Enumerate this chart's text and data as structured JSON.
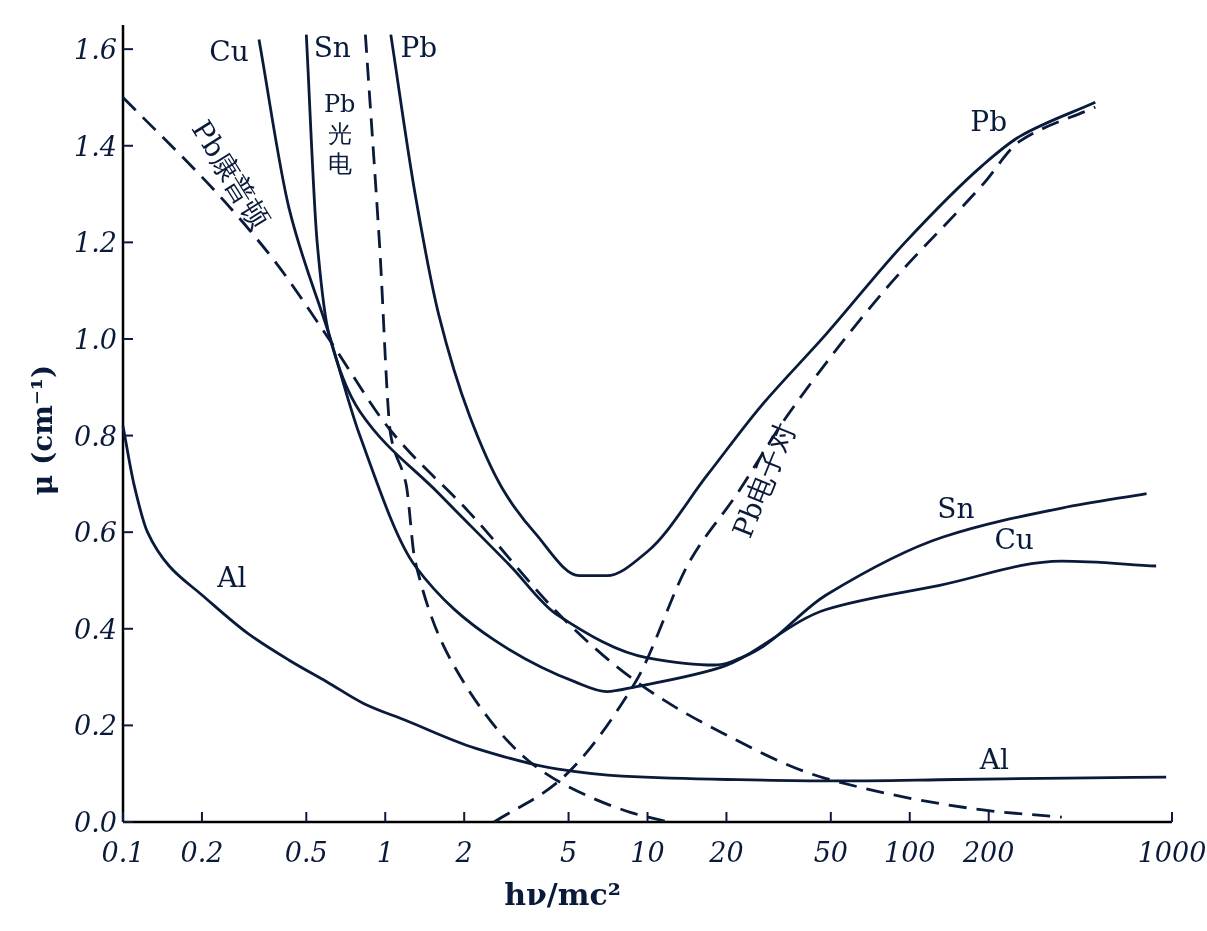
{
  "chart_data": {
    "type": "line",
    "xlabel": "hν/mc²",
    "ylabel": "μ (cm⁻¹)",
    "log": "x",
    "xlim": [
      0.1,
      1000
    ],
    "ylim": [
      0,
      1.65
    ],
    "xticks": [
      0.1,
      0.2,
      0.5,
      1,
      2,
      5,
      10,
      20,
      50,
      100,
      200,
      1000
    ],
    "yticks": [
      {
        "value": 0,
        "label": "0.0"
      },
      {
        "value": 0.2,
        "label": "0.2"
      },
      {
        "value": 0.4,
        "label": "0.4"
      },
      {
        "value": 0.6,
        "label": "0.6"
      },
      {
        "value": 0.8,
        "label": "0.8"
      },
      {
        "value": 1,
        "label": "1.0"
      },
      {
        "value": 1.2,
        "label": "1.2"
      },
      {
        "value": 1.4,
        "label": "1.4"
      },
      {
        "value": 1.6,
        "label": "1.6"
      }
    ],
    "series": [
      {
        "name": "Al",
        "color": "#0a1a3a",
        "line_style": "solid",
        "x": [
          0.1,
          0.11,
          0.124,
          0.15,
          0.2,
          0.3,
          0.43,
          0.6,
          0.83,
          1.2,
          2.2,
          4.5,
          8,
          20,
          50,
          150,
          400,
          950
        ],
        "values": [
          0.82,
          0.7,
          0.6,
          0.53,
          0.47,
          0.39,
          0.335,
          0.29,
          0.245,
          0.21,
          0.153,
          0.11,
          0.095,
          0.088,
          0.085,
          0.088,
          0.091,
          0.093
        ]
      },
      {
        "name": "Cu",
        "color": "#0a1a3a",
        "line_style": "solid",
        "x": [
          0.33,
          0.43,
          0.61,
          0.8,
          1.3,
          2.6,
          5.3,
          7,
          9,
          19,
          48,
          130,
          380,
          870
        ],
        "values": [
          1.62,
          1.27,
          1.01,
          0.8,
          0.53,
          0.377,
          0.29,
          0.27,
          0.28,
          0.32,
          0.44,
          0.49,
          0.54,
          0.53
        ]
      },
      {
        "name": "Sn",
        "color": "#0a1a3a",
        "line_style": "solid",
        "x": [
          0.5,
          0.55,
          0.61,
          0.8,
          1.6,
          3,
          4.5,
          10,
          18,
          25,
          48,
          134,
          380,
          800
        ],
        "values": [
          1.63,
          1.2,
          1.01,
          0.85,
          0.68,
          0.53,
          0.43,
          0.34,
          0.325,
          0.35,
          0.47,
          0.59,
          0.65,
          0.68
        ]
      },
      {
        "name": "Pb",
        "color": "#0a1a3a",
        "line_style": "solid",
        "x": [
          1.05,
          1.3,
          1.6,
          2.1,
          2.8,
          3.7,
          5.5,
          7,
          10,
          17,
          27,
          48,
          96,
          190,
          264,
          510
        ],
        "values": [
          1.63,
          1.3,
          1.05,
          0.84,
          0.69,
          0.6,
          0.51,
          0.51,
          0.56,
          0.72,
          0.86,
          1.01,
          1.2,
          1.36,
          1.42,
          1.49
        ]
      },
      {
        "name": "Pb康普顿",
        "color": "#0a1a3a",
        "line_style": "dashed",
        "x": [
          0.1,
          0.23,
          0.38,
          0.61,
          1.05,
          2.1,
          4.8,
          9.1,
          17,
          48,
          190,
          380
        ],
        "values": [
          1.5,
          1.3,
          1.16,
          1.0,
          0.81,
          0.64,
          0.42,
          0.29,
          0.2,
          0.09,
          0.025,
          0.01
        ]
      },
      {
        "name": "Pb光电",
        "color": "#0a1a3a",
        "line_style": "dashed",
        "x": [
          0.84,
          0.95,
          1.05,
          1.2,
          1.3,
          1.8,
          3.3,
          4.8,
          8.6,
          12
        ],
        "values": [
          1.63,
          1.2,
          0.8,
          0.7,
          0.54,
          0.33,
          0.14,
          0.078,
          0.02,
          0
        ]
      },
      {
        "name": "Pb电子对",
        "color": "#0a1a3a",
        "line_style": "dashed",
        "x": [
          2.6,
          4.6,
          9,
          14.5,
          22,
          34,
          80,
          190,
          264,
          510
        ],
        "values": [
          0,
          0.085,
          0.29,
          0.54,
          0.68,
          0.84,
          1.1,
          1.32,
          1.41,
          1.48
        ]
      }
    ],
    "annotations": [
      {
        "text": "Cu",
        "x": 0.33,
        "y": 1.62
      },
      {
        "text": "Sn",
        "x": 0.5,
        "y": 1.63
      },
      {
        "text": "Pb",
        "x": 1.05,
        "y": 1.63
      },
      {
        "text": "Al",
        "x": 0.2,
        "y": 0.47
      }
    ]
  }
}
